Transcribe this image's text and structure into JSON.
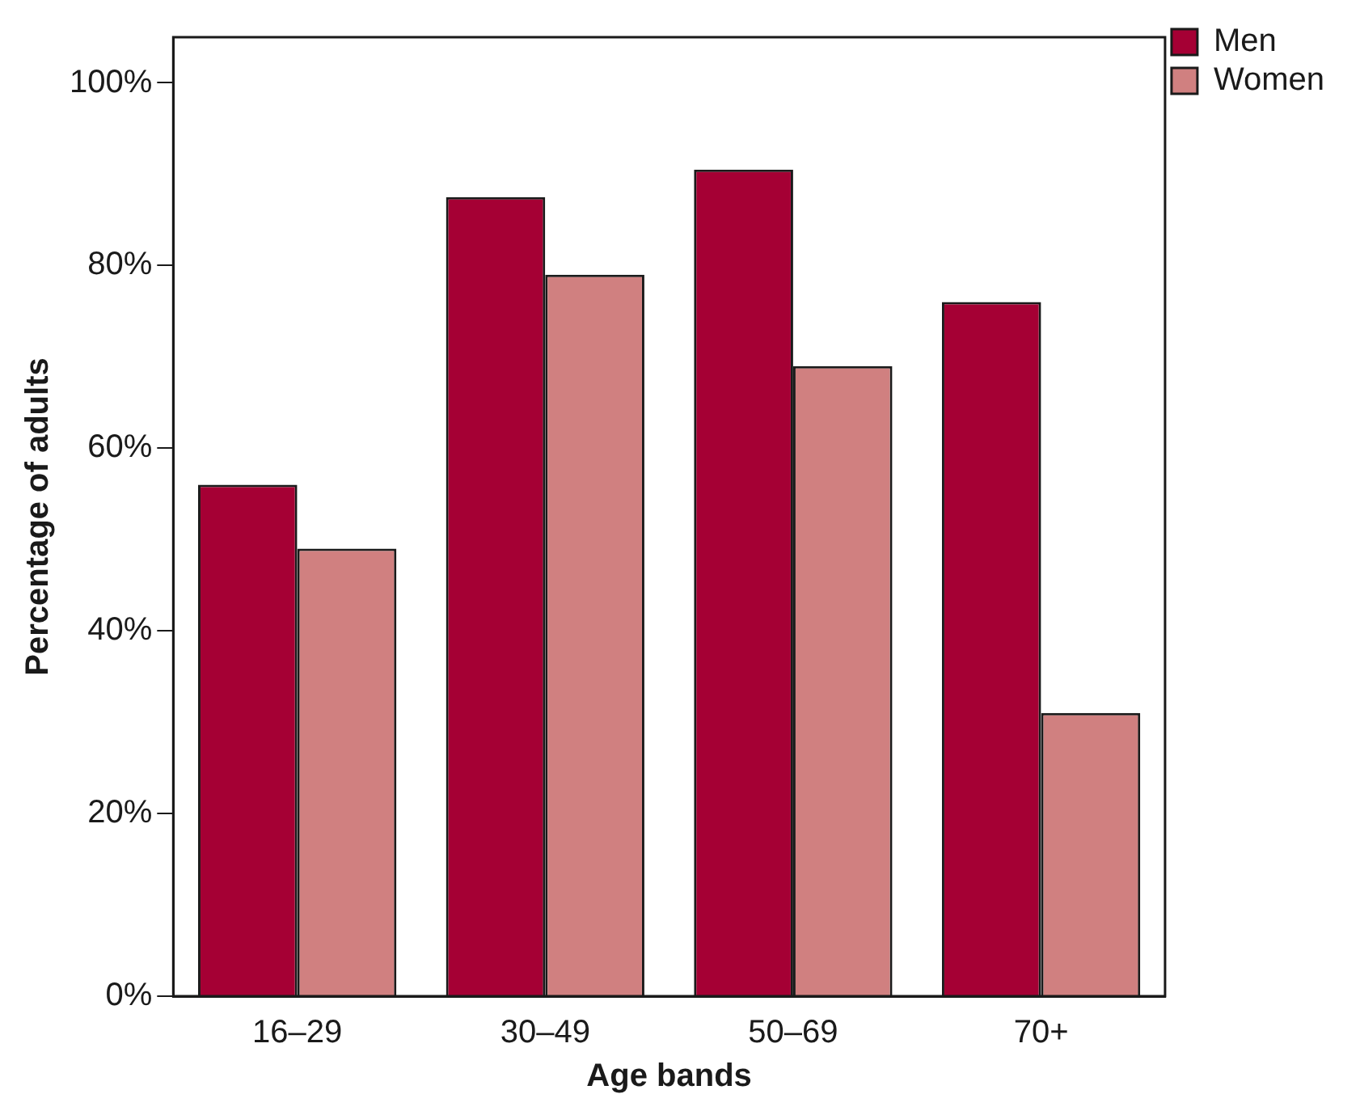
{
  "chart_data": {
    "type": "bar",
    "xlabel": "Age bands",
    "ylabel": "Percentage of adults",
    "categories": [
      "16–29",
      "30–49",
      "50–69",
      "70+"
    ],
    "series": [
      {
        "name": "Men",
        "color": "#a50034",
        "values": [
          56,
          87.5,
          90.5,
          76
        ]
      },
      {
        "name": "Women",
        "color": "#d08080",
        "values": [
          49,
          79,
          69,
          31
        ]
      }
    ],
    "ylim": [
      0,
      105
    ],
    "yticks": [
      {
        "value": 0,
        "label": "0%"
      },
      {
        "value": 20,
        "label": "20%"
      },
      {
        "value": 40,
        "label": "40%"
      },
      {
        "value": 60,
        "label": "60%"
      },
      {
        "value": 80,
        "label": "80%"
      },
      {
        "value": 100,
        "label": "100%"
      }
    ],
    "grid": false,
    "legend": "top right"
  }
}
